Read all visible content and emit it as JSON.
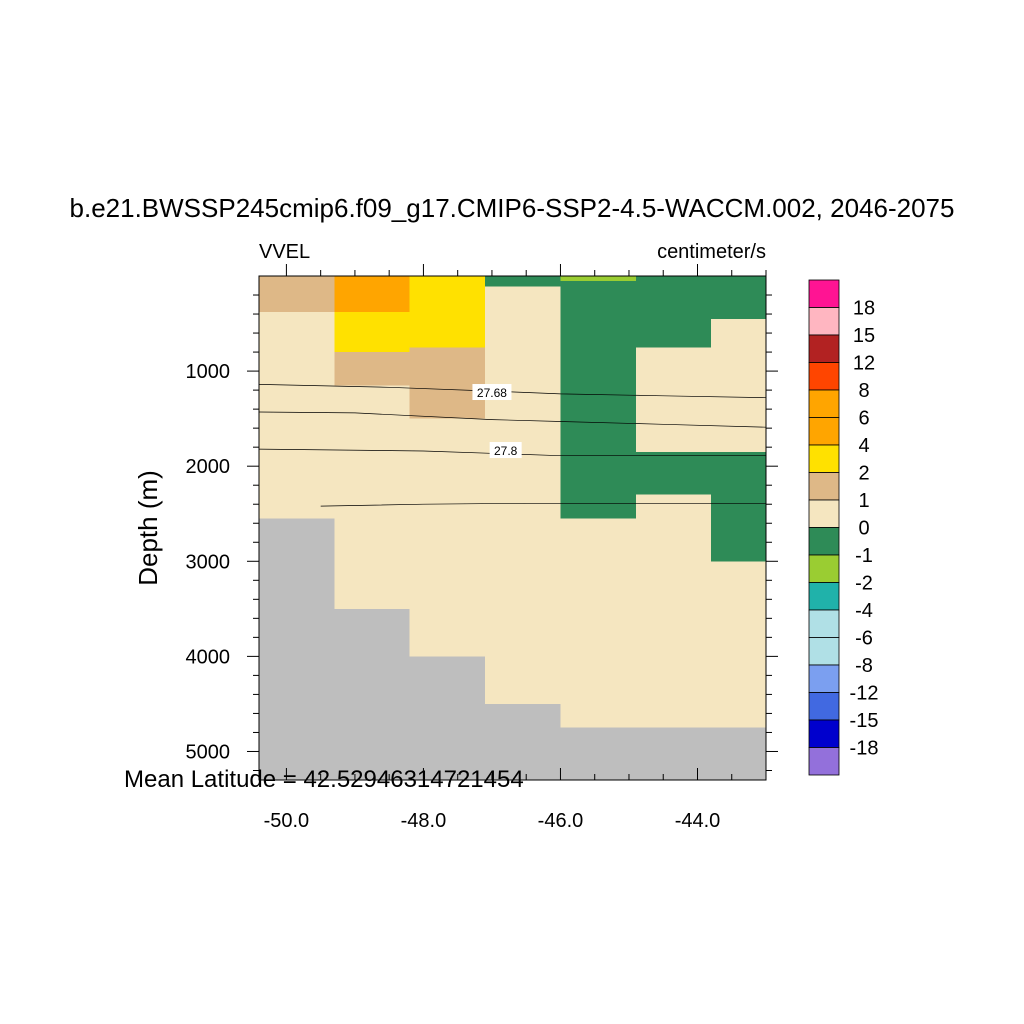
{
  "chart_data": {
    "type": "heatmap",
    "title": "b.e21.BWSSP245cmip6.f09_g17.CMIP6-SSP2-4.5-WACCM.002, 2046-2075",
    "variable": "VVEL",
    "units": "centimeter/s",
    "xlabel": "",
    "ylabel": "Depth (m)",
    "annotation": "Mean Latitude = 42.52946314721454",
    "xlim": [
      -50.4,
      -43.0
    ],
    "ylim": [
      5300,
      0
    ],
    "x_ticks": [
      -50.0,
      -48.0,
      -46.0,
      -44.0
    ],
    "x_tick_labels": [
      "-50.0",
      "-48.0",
      "-46.0",
      "-44.0"
    ],
    "y_ticks": [
      1000,
      2000,
      3000,
      4000,
      5000
    ],
    "y_tick_labels": [
      "1000",
      "2000",
      "3000",
      "4000",
      "5000"
    ],
    "colorbar": {
      "labels": [
        "18",
        "15",
        "12",
        "8",
        "6",
        "4",
        "2",
        "1",
        "0",
        "-1",
        "-2",
        "-4",
        "-6",
        "-8",
        "-12",
        "-15",
        "-18"
      ],
      "colors": [
        "#ff1493",
        "#ffb6c1",
        "#b22222",
        "#ff4500",
        "#ffa500",
        "#ffa500",
        "#ffe100",
        "#deb887",
        "#f5e6c0",
        "#2e8b57",
        "#9acd32",
        "#20b2aa",
        "#b0e0e6",
        "#b0e0e6",
        "#7b9ff0",
        "#4169e1",
        "#0000cd",
        "#9370db"
      ]
    },
    "fill_colors": {
      "land": "#bebebe",
      "c1_2": "#deb887",
      "c0_1": "#f5e6c0",
      "c2_4": "#ffe100",
      "c4_6": "#ffa500",
      "cm1_0": "#2e8b57",
      "cm2_m1": "#9acd32"
    },
    "cells": [
      {
        "x0": -50.4,
        "x1": -43.0,
        "y0": 0,
        "y1": 5300,
        "c": "c0_1"
      },
      {
        "x0": -50.4,
        "x1": -49.3,
        "y0": 0,
        "y1": 380,
        "c": "c1_2"
      },
      {
        "x0": -49.3,
        "x1": -48.2,
        "y0": 0,
        "y1": 380,
        "c": "c4_6"
      },
      {
        "x0": -49.3,
        "x1": -48.2,
        "y0": 380,
        "y1": 800,
        "c": "c2_4"
      },
      {
        "x0": -48.2,
        "x1": -47.1,
        "y0": 0,
        "y1": 750,
        "c": "c2_4"
      },
      {
        "x0": -49.3,
        "x1": -48.2,
        "y0": 800,
        "y1": 1150,
        "c": "c1_2"
      },
      {
        "x0": -48.2,
        "x1": -47.1,
        "y0": 750,
        "y1": 1500,
        "c": "c1_2"
      },
      {
        "x0": -47.1,
        "x1": -46.0,
        "y0": 0,
        "y1": 110,
        "c": "cm1_0"
      },
      {
        "x0": -46.0,
        "x1": -43.0,
        "y0": 0,
        "y1": 2550,
        "c": "cm1_0"
      },
      {
        "x0": -46.0,
        "x1": -44.9,
        "y0": 0,
        "y1": 50,
        "c": "cm2_m1"
      },
      {
        "x0": -44.9,
        "x1": -43.8,
        "y0": 750,
        "y1": 1850,
        "c": "c0_1"
      },
      {
        "x0": -43.8,
        "x1": -43.0,
        "y0": 450,
        "y1": 1850,
        "c": "c0_1"
      },
      {
        "x0": -44.9,
        "x1": -43.8,
        "y0": 2300,
        "y1": 2550,
        "c": "c0_1"
      },
      {
        "x0": -43.8,
        "x1": -43.0,
        "y0": 2550,
        "y1": 3000,
        "c": "cm1_0"
      },
      {
        "x0": -50.4,
        "x1": -49.3,
        "y0": 2550,
        "y1": 5300,
        "c": "land"
      },
      {
        "x0": -49.3,
        "x1": -48.2,
        "y0": 3500,
        "y1": 5300,
        "c": "land"
      },
      {
        "x0": -48.2,
        "x1": -47.1,
        "y0": 4000,
        "y1": 5300,
        "c": "land"
      },
      {
        "x0": -47.1,
        "x1": -46.0,
        "y0": 4500,
        "y1": 5300,
        "c": "land"
      },
      {
        "x0": -46.0,
        "x1": -43.0,
        "y0": 4750,
        "y1": 5300,
        "c": "land"
      }
    ],
    "contours": [
      {
        "points": [
          [
            -50.4,
            1140
          ],
          [
            -48.5,
            1170
          ],
          [
            -47.0,
            1210
          ],
          [
            -46.0,
            1240
          ],
          [
            -44.5,
            1260
          ],
          [
            -43.0,
            1280
          ]
        ]
      },
      {
        "points": [
          [
            -50.4,
            1430
          ],
          [
            -49.0,
            1440
          ],
          [
            -47.0,
            1510
          ],
          [
            -46.0,
            1530
          ],
          [
            -44.5,
            1560
          ],
          [
            -43.0,
            1590
          ]
        ]
      },
      {
        "points": [
          [
            -50.4,
            1820
          ],
          [
            -48.0,
            1840
          ],
          [
            -46.0,
            1890
          ],
          [
            -44.0,
            1890
          ],
          [
            -43.0,
            1890
          ]
        ]
      },
      {
        "points": [
          [
            -49.5,
            2420
          ],
          [
            -48.0,
            2400
          ],
          [
            -46.5,
            2390
          ],
          [
            -45.0,
            2390
          ],
          [
            -43.0,
            2390
          ]
        ]
      }
    ],
    "contour_labels": [
      {
        "x": -47.0,
        "y": 1220,
        "text": "27.68"
      },
      {
        "x": -46.8,
        "y": 1830,
        "text": "27.8"
      }
    ]
  }
}
